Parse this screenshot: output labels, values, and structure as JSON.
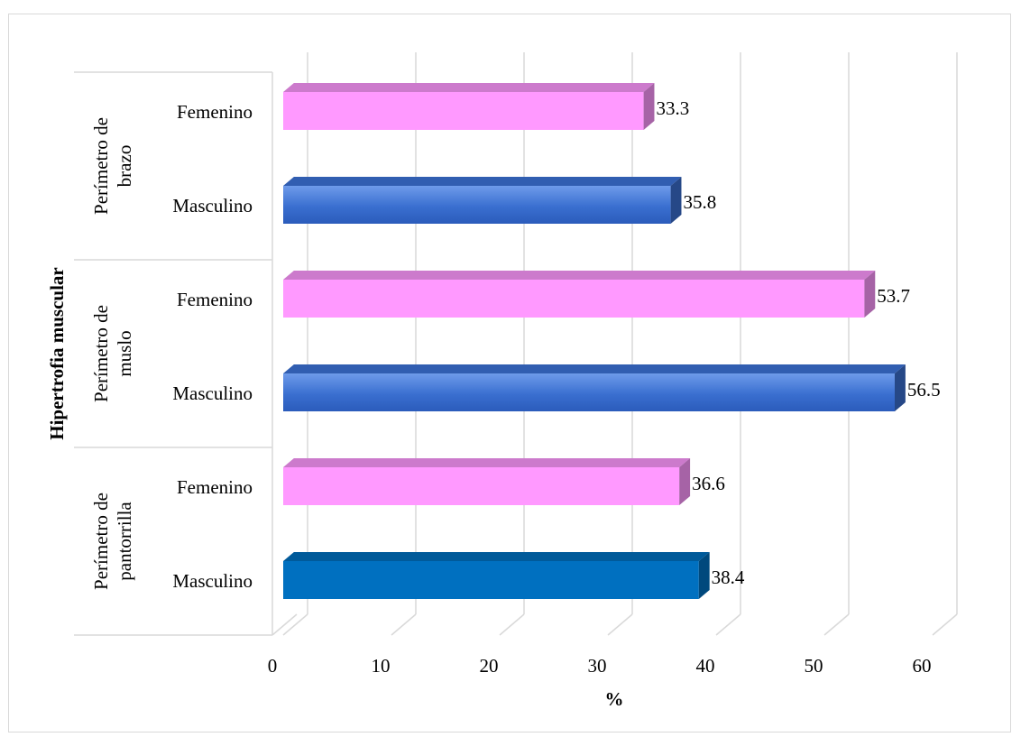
{
  "chart_data": {
    "type": "bar",
    "orientation": "horizontal",
    "style": "3d",
    "title": "",
    "xlabel": "%",
    "ylabel": "Hipertrofia muscular",
    "xlim": [
      0,
      60
    ],
    "x_ticks": [
      "0",
      "10",
      "20",
      "30",
      "40",
      "50",
      "60"
    ],
    "grid": true,
    "legend": "none",
    "groups": [
      {
        "label_lines": [
          "Perímetro de",
          "brazo"
        ],
        "bars": [
          {
            "category": "Femenino",
            "value": 33.3,
            "label": "33.3",
            "color": "#ff99ff"
          },
          {
            "category": "Masculino",
            "value": 35.8,
            "label": "35.8",
            "color": "#3a6fd0"
          }
        ]
      },
      {
        "label_lines": [
          "Perímetro de",
          "muslo"
        ],
        "bars": [
          {
            "category": "Femenino",
            "value": 53.7,
            "label": "53.7",
            "color": "#ff99ff"
          },
          {
            "category": "Masculino",
            "value": 56.5,
            "label": "56.5",
            "color": "#3a6fd0"
          }
        ]
      },
      {
        "label_lines": [
          "Perímetro de",
          "pantorrilla"
        ],
        "bars": [
          {
            "category": "Femenino",
            "value": 36.6,
            "label": "36.6",
            "color": "#ff99ff"
          },
          {
            "category": "Masculino",
            "value": 38.4,
            "label": "38.4",
            "color": "#0070c0"
          }
        ]
      }
    ]
  }
}
